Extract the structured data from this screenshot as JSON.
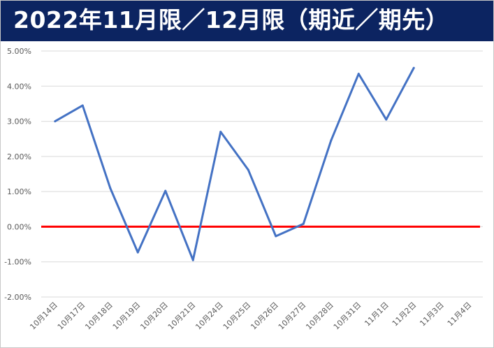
{
  "title": "2022年11月限／12月限（期近／期先）",
  "chart_data": {
    "type": "line",
    "categories": [
      "10月14日",
      "10月17日",
      "10月18日",
      "10月19日",
      "10月20日",
      "10月21日",
      "10月24日",
      "10月25日",
      "10月26日",
      "10月27日",
      "10月28日",
      "10月31日",
      "11月1日",
      "11月2日",
      "11月3日",
      "11月4日"
    ],
    "series": [
      {
        "values": [
          3.0,
          3.45,
          1.1,
          -0.73,
          1.02,
          -0.95,
          2.7,
          1.62,
          -0.27,
          0.08,
          2.45,
          4.35,
          3.05,
          4.52,
          null,
          null
        ],
        "color": "#4472c4"
      }
    ],
    "zero_line_color": "#ff0000",
    "ylim": [
      -2.0,
      5.0
    ],
    "yticks": [
      "5.00%",
      "4.00%",
      "3.00%",
      "2.00%",
      "1.00%",
      "0.00%",
      "-1.00%",
      "-2.00%"
    ],
    "xlabel": "",
    "ylabel": "",
    "grid": true
  }
}
